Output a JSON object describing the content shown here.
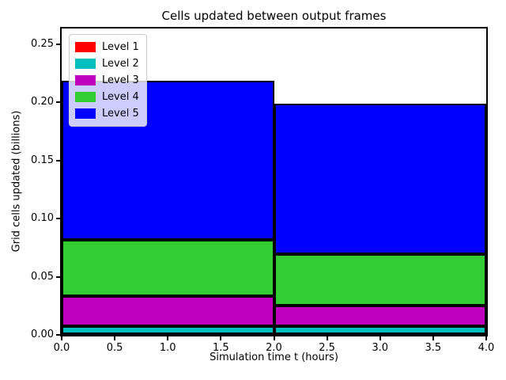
{
  "chart_data": {
    "type": "bar",
    "stacked": true,
    "title": "Cells updated between output frames",
    "xlabel": "Simulation time t (hours)",
    "ylabel": "Grid cells updated (billions)",
    "xlim": [
      0,
      4
    ],
    "ylim": [
      0,
      0.2636
    ],
    "grid": false,
    "legend_position": "upper left",
    "bar_edge_color": "#000000",
    "bars": [
      {
        "x_start": 0,
        "x_end": 2
      },
      {
        "x_start": 2,
        "x_end": 4
      }
    ],
    "series": [
      {
        "name": "Level 1",
        "color": "#ff0000",
        "values": [
          0.0005,
          0.0005
        ]
      },
      {
        "name": "Level 2",
        "color": "#00bfbf",
        "values": [
          0.007,
          0.007
        ]
      },
      {
        "name": "Level 3",
        "color": "#bf00bf",
        "values": [
          0.026,
          0.0175
        ]
      },
      {
        "name": "Level 4",
        "color": "#32cd32",
        "values": [
          0.048,
          0.0443
        ]
      },
      {
        "name": "Level 5",
        "color": "#0000ff",
        "values": [
          0.1375,
          0.1297
        ]
      }
    ],
    "stack_totals": [
      0.219,
      0.199
    ],
    "xticks": [
      {
        "value": 0.0,
        "label": "0.0"
      },
      {
        "value": 0.5,
        "label": "0.5"
      },
      {
        "value": 1.0,
        "label": "1.0"
      },
      {
        "value": 1.5,
        "label": "1.5"
      },
      {
        "value": 2.0,
        "label": "2.0"
      },
      {
        "value": 2.5,
        "label": "2.5"
      },
      {
        "value": 3.0,
        "label": "3.0"
      },
      {
        "value": 3.5,
        "label": "3.5"
      },
      {
        "value": 4.0,
        "label": "4.0"
      }
    ],
    "yticks": [
      {
        "value": 0.0,
        "label": "0.00"
      },
      {
        "value": 0.05,
        "label": "0.05"
      },
      {
        "value": 0.1,
        "label": "0.10"
      },
      {
        "value": 0.15,
        "label": "0.15"
      },
      {
        "value": 0.2,
        "label": "0.20"
      },
      {
        "value": 0.25,
        "label": "0.25"
      }
    ]
  }
}
